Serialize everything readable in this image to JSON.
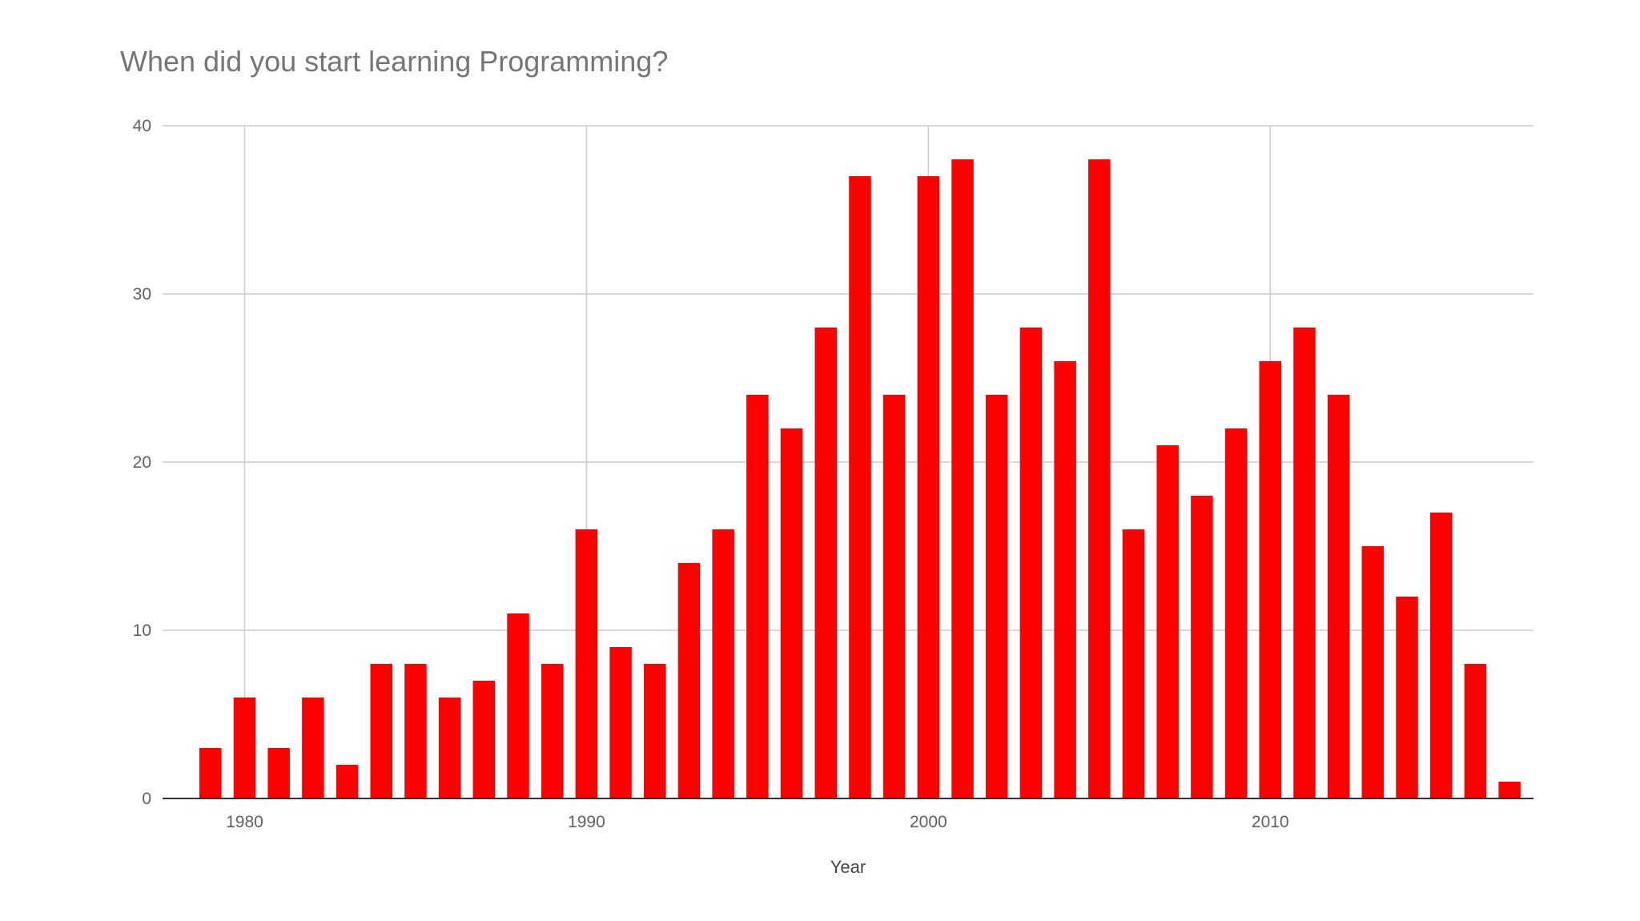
{
  "chart_data": {
    "type": "bar",
    "title": "When did you start learning Programming?",
    "xlabel": "Year",
    "ylabel": "",
    "x": [
      1979,
      1980,
      1981,
      1982,
      1983,
      1984,
      1985,
      1986,
      1987,
      1988,
      1989,
      1990,
      1991,
      1992,
      1993,
      1994,
      1995,
      1996,
      1997,
      1998,
      1999,
      2000,
      2001,
      2002,
      2003,
      2004,
      2005,
      2006,
      2007,
      2008,
      2009,
      2010,
      2011,
      2012,
      2013,
      2014,
      2015,
      2016,
      2017
    ],
    "values": [
      3,
      6,
      3,
      6,
      2,
      8,
      8,
      6,
      7,
      11,
      8,
      16,
      9,
      8,
      14,
      16,
      24,
      22,
      28,
      37,
      24,
      37,
      38,
      24,
      28,
      26,
      38,
      16,
      21,
      18,
      22,
      26,
      28,
      24,
      15,
      12,
      17,
      8,
      1
    ],
    "ylim": [
      0,
      40
    ],
    "yticks": [
      0,
      10,
      20,
      30,
      40
    ],
    "xticks": [
      1980,
      1990,
      2000,
      2010
    ],
    "bar_color": "#ff0000",
    "grid": true,
    "legend": "none"
  }
}
